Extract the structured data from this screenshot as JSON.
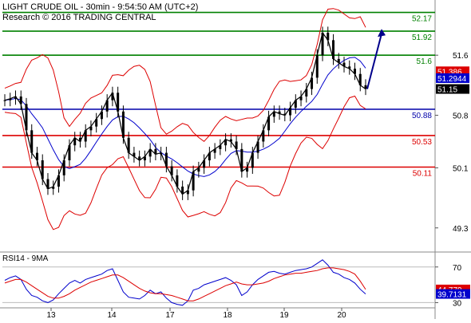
{
  "header": {
    "title": "LIGHT CRUDE OIL - 30min - 9:54:50 AM (UTC+2)",
    "subtitle": "Research © 2016 TRADING CENTRAL"
  },
  "colors": {
    "price": "#000000",
    "bollinger": "#dd0000",
    "moving_average": "#0000cc",
    "resistance": "#008000",
    "pivot": "#0000aa",
    "support": "#dd0000",
    "projection_arrow": "#00008b",
    "rsi": "#0000cc",
    "rsi_ma": "#dd0000"
  },
  "chart_data": [
    {
      "type": "line",
      "title": "LIGHT CRUDE OIL - 30min",
      "x_ticks": [
        "13",
        "14",
        "17",
        "18",
        "19",
        "20"
      ],
      "y_ticks": [
        "51.6",
        "50.8",
        "50.1",
        "49.3"
      ],
      "ylim": [
        49.0,
        52.25
      ],
      "levels": [
        {
          "value": 52.17,
          "label": "52.17",
          "kind": "resistance"
        },
        {
          "value": 51.92,
          "label": "51.92",
          "kind": "resistance"
        },
        {
          "value": 51.6,
          "label": "51.6",
          "kind": "resistance"
        },
        {
          "value": 50.88,
          "label": "50.88",
          "kind": "pivot"
        },
        {
          "value": 50.53,
          "label": "50.53",
          "kind": "support"
        },
        {
          "value": 50.11,
          "label": "50.11",
          "kind": "support"
        }
      ],
      "price_tags": [
        {
          "value": 51.386,
          "label": "51.386",
          "color": "#dd0000"
        },
        {
          "value": 51.2944,
          "label": "51.2944",
          "color": "#0000cc"
        },
        {
          "value": 51.15,
          "label": "51.15",
          "color": "#000000"
        }
      ],
      "series": [
        {
          "values": [
            51.0,
            51.02,
            51.05,
            50.95,
            50.6,
            50.3,
            50.2,
            49.95,
            49.82,
            49.85,
            50.0,
            50.2,
            50.4,
            50.5,
            50.45,
            50.6,
            50.65,
            50.75,
            50.85,
            51.0,
            51.1,
            50.85,
            50.5,
            50.3,
            50.25,
            50.2,
            50.25,
            50.35,
            50.28,
            50.3,
            50.12,
            50.0,
            49.85,
            49.75,
            49.8,
            50.05,
            50.1,
            50.2,
            50.3,
            50.35,
            50.4,
            50.48,
            50.45,
            50.35,
            50.05,
            50.1,
            50.3,
            50.45,
            50.6,
            50.78,
            50.85,
            50.82,
            50.8,
            50.9,
            51.0,
            51.05,
            51.15,
            51.3,
            51.6,
            51.9,
            51.8,
            51.55,
            51.5,
            51.45,
            51.42,
            51.35,
            51.2,
            51.15
          ]
        }
      ],
      "projection": {
        "from": 51.15,
        "to": 51.95
      }
    },
    {
      "type": "line",
      "title": "RSI14 - 9MA",
      "y_ticks": [
        "70",
        "30"
      ],
      "ylim": [
        25,
        85
      ],
      "values_tags": [
        {
          "value": 44.779,
          "label": "44.779",
          "color": "#dd0000"
        },
        {
          "value": 39.7131,
          "label": "39.7131",
          "color": "#0000cc"
        }
      ],
      "series": [
        {
          "name": "RSI14",
          "values": [
            55,
            58,
            60,
            56,
            45,
            38,
            36,
            32,
            30,
            33,
            40,
            46,
            52,
            55,
            52,
            56,
            58,
            60,
            62,
            66,
            68,
            55,
            42,
            36,
            35,
            34,
            38,
            44,
            40,
            42,
            35,
            30,
            28,
            27,
            32,
            44,
            46,
            50,
            52,
            54,
            56,
            58,
            55,
            50,
            38,
            42,
            50,
            56,
            60,
            64,
            65,
            63,
            62,
            64,
            66,
            67,
            68,
            70,
            74,
            78,
            72,
            64,
            62,
            58,
            56,
            52,
            45,
            39.7131
          ]
        },
        {
          "name": "9MA",
          "values": [
            52,
            54,
            56,
            56,
            53,
            49,
            45,
            41,
            37,
            35,
            35,
            37,
            40,
            44,
            47,
            50,
            53,
            55,
            57,
            59,
            61,
            61,
            58,
            54,
            50,
            46,
            43,
            41,
            40,
            40,
            39,
            38,
            36,
            34,
            32,
            32,
            34,
            37,
            40,
            43,
            46,
            49,
            51,
            53,
            51,
            50,
            50,
            51,
            52,
            54,
            57,
            59,
            61,
            62,
            63,
            63,
            64,
            65,
            66,
            68,
            69,
            69,
            68,
            67,
            65,
            62,
            54,
            44.779
          ]
        }
      ]
    }
  ]
}
